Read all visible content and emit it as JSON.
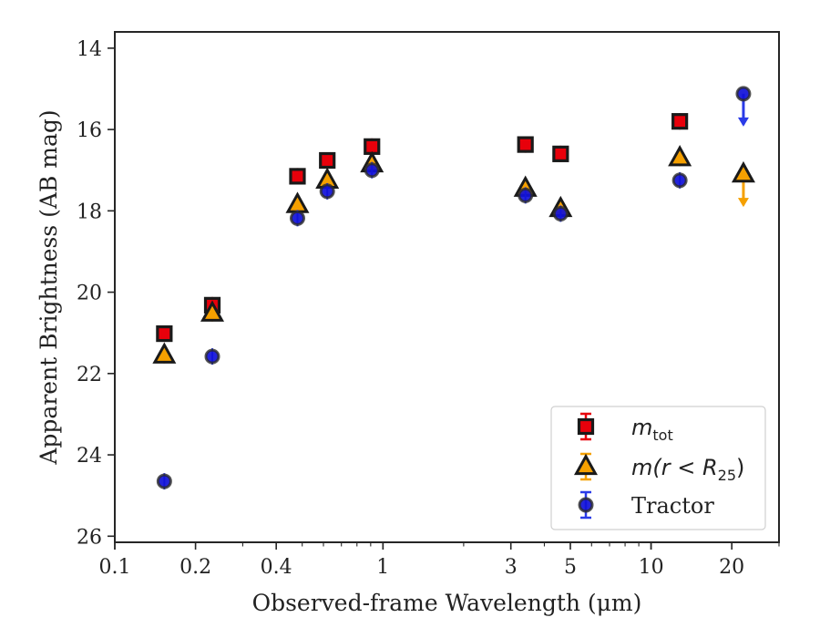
{
  "chart_data": {
    "type": "scatter",
    "xlabel": "Observed-frame Wavelength (μm)",
    "ylabel": "Apparent Brightness (AB mag)",
    "xscale": "log",
    "xlim": [
      0.1,
      30
    ],
    "ylim": [
      26.15,
      13.6
    ],
    "y_inverted": true,
    "xticks": [
      0.1,
      0.2,
      0.4,
      1,
      3,
      5,
      10,
      20
    ],
    "xtick_labels": [
      "0.1",
      "0.2",
      "0.4",
      "1",
      "3",
      "5",
      "10",
      "20"
    ],
    "yticks": [
      14,
      16,
      18,
      20,
      22,
      24,
      26
    ],
    "ytick_labels": [
      "14",
      "16",
      "18",
      "20",
      "22",
      "24",
      "26"
    ],
    "grid": false,
    "legend_position": "bottom-right",
    "series": [
      {
        "name": "m_tot",
        "legend_label": "m",
        "legend_sub": "tot",
        "marker": "square",
        "color": "#e8000b",
        "edge_color": "#1a1a1a",
        "errbar_color": "#e8000b",
        "points": [
          {
            "x": 0.153,
            "y": 21.02
          },
          {
            "x": 0.231,
            "y": 20.32
          },
          {
            "x": 0.48,
            "y": 17.15
          },
          {
            "x": 0.62,
            "y": 16.76
          },
          {
            "x": 0.91,
            "y": 16.42
          },
          {
            "x": 3.4,
            "y": 16.37
          },
          {
            "x": 4.6,
            "y": 16.6
          },
          {
            "x": 12.8,
            "y": 15.8
          }
        ]
      },
      {
        "name": "m(r < R25)",
        "legend_label": "m(r < R",
        "legend_sub": "25",
        "legend_tail": ")",
        "marker": "triangle",
        "color": "#f5a000",
        "edge_color": "#1a1a1a",
        "errbar_color": "#f5a000",
        "points": [
          {
            "x": 0.153,
            "y": 21.55
          },
          {
            "x": 0.231,
            "y": 20.52
          },
          {
            "x": 0.48,
            "y": 17.85
          },
          {
            "x": 0.62,
            "y": 17.25
          },
          {
            "x": 0.91,
            "y": 16.85
          },
          {
            "x": 3.4,
            "y": 17.45
          },
          {
            "x": 4.6,
            "y": 17.95
          },
          {
            "x": 12.8,
            "y": 16.7
          },
          {
            "x": 22.1,
            "y": 17.1,
            "upper_limit": true
          }
        ]
      },
      {
        "name": "Tractor",
        "legend_label": "Tractor",
        "marker": "circle",
        "color": "#1010d8",
        "edge_color": "#2a2a2a",
        "errbar_color": "#2a3be8",
        "points": [
          {
            "x": 0.153,
            "y": 24.65
          },
          {
            "x": 0.231,
            "y": 21.58
          },
          {
            "x": 0.48,
            "y": 18.18
          },
          {
            "x": 0.62,
            "y": 17.52
          },
          {
            "x": 0.91,
            "y": 17.0
          },
          {
            "x": 3.4,
            "y": 17.62
          },
          {
            "x": 4.6,
            "y": 18.07
          },
          {
            "x": 12.8,
            "y": 17.25
          },
          {
            "x": 22.1,
            "y": 15.12,
            "upper_limit": true
          }
        ]
      }
    ]
  }
}
